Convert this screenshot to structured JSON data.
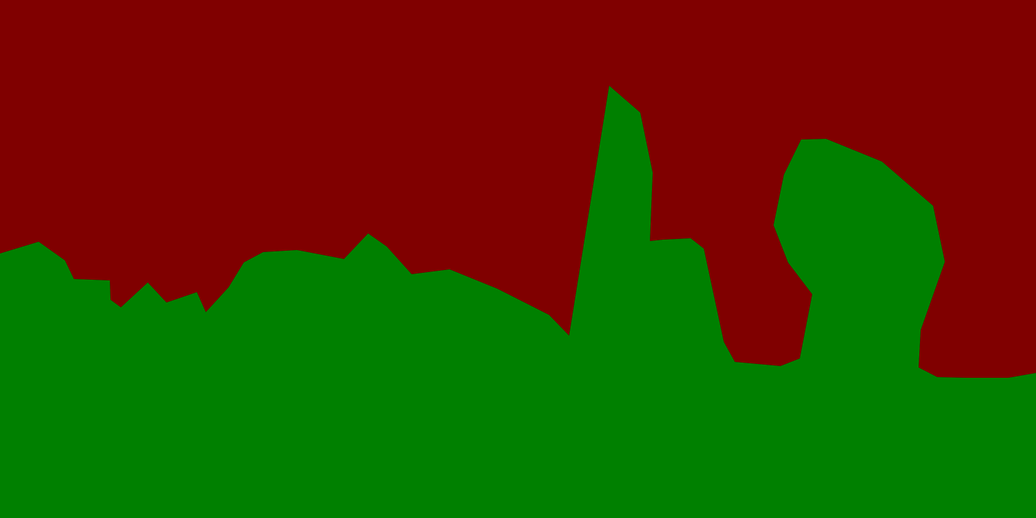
{
  "segmentation": {
    "regions": [
      {
        "label": "",
        "color": "#800000"
      },
      {
        "label": "",
        "color": "#008000"
      }
    ],
    "background_color": "#000000"
  }
}
